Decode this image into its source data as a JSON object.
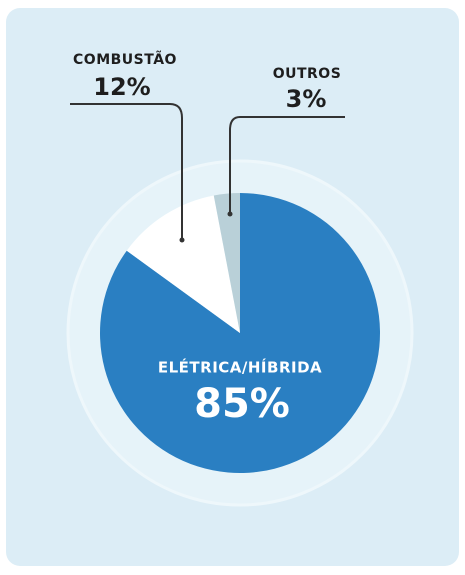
{
  "chart_data": {
    "type": "pie",
    "categories": [
      "ELÉTRICA/HÍBRIDA",
      "COMBUSTÃO",
      "OUTROS"
    ],
    "values": [
      85,
      12,
      3
    ],
    "value_labels": [
      "85%",
      "12%",
      "3%"
    ],
    "colors": [
      "#2a7fc2",
      "#ffffff",
      "#b9d0d8"
    ]
  }
}
